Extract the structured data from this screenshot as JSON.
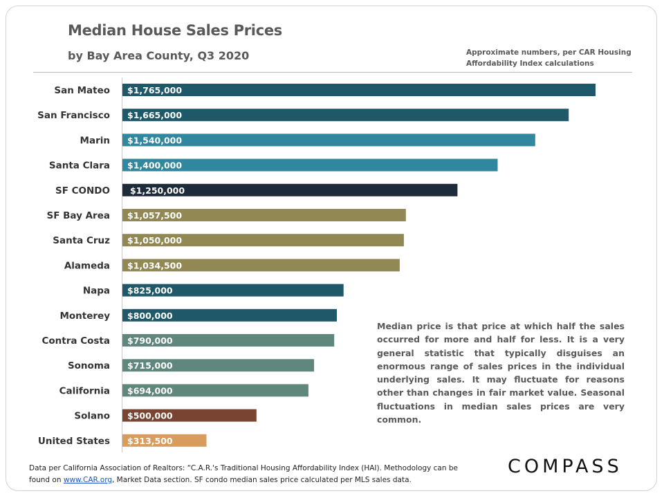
{
  "header": {
    "title": "Median House Sales Prices",
    "subtitle": "by Bay Area County, Q3 2020",
    "note": "Approximate numbers, per CAR Housing Affordability Index calculations"
  },
  "explanation": "Median price is that price at which half the sales occurred for more and half for less. It is a very general statistic that typically disguises an enormous range of sales prices in the individual underlying sales. It may fluctuate for reasons other than changes in fair market value. Seasonal fluctuations in median sales prices are very common.",
  "footer": {
    "source_part1": "Data per California Association of Realtors: “C.A.R.'s Traditional Housing Affordability Index (HAI). Methodology can be found on",
    "source_link": "www.CAR.org",
    "source_part2": ",  Market Data section. SF condo median sales price calculated per MLS sales data.",
    "logo": "COMPASS"
  },
  "chart_data": {
    "type": "bar",
    "orientation": "horizontal",
    "title": "Median House Sales Prices",
    "subtitle": "by Bay Area County, Q3 2020",
    "xlabel": "",
    "ylabel": "",
    "xlim": [
      0,
      1800000
    ],
    "grid": false,
    "categories": [
      "San Mateo",
      "San Francisco",
      "Marin",
      "Santa Clara",
      "SF CONDO",
      "SF Bay Area",
      "Santa Cruz",
      "Alameda",
      "Napa",
      "Monterey",
      "Contra Costa",
      "Sonoma",
      "California",
      "Solano",
      "United States"
    ],
    "values": [
      1765000,
      1665000,
      1540000,
      1400000,
      1250000,
      1057500,
      1050000,
      1034500,
      825000,
      800000,
      790000,
      715000,
      694000,
      500000,
      313500
    ],
    "labels": [
      "$1,765,000",
      "$1,665,000",
      "$1,540,000",
      "$1,400,000",
      "$1,250,000",
      "$1,057,500",
      "$1,050,000",
      "$1,034,500",
      "$825,000",
      "$800,000",
      "$790,000",
      "$715,000",
      "$694,000",
      "$500,000",
      "$313,500"
    ],
    "colors": [
      "#1f5969",
      "#1f5969",
      "#31879e",
      "#31879e",
      "#1d2b3a",
      "#928853",
      "#928853",
      "#928853",
      "#1f5969",
      "#1f5969",
      "#60877d",
      "#60877d",
      "#60877d",
      "#7a4433",
      "#d89c5f"
    ]
  }
}
